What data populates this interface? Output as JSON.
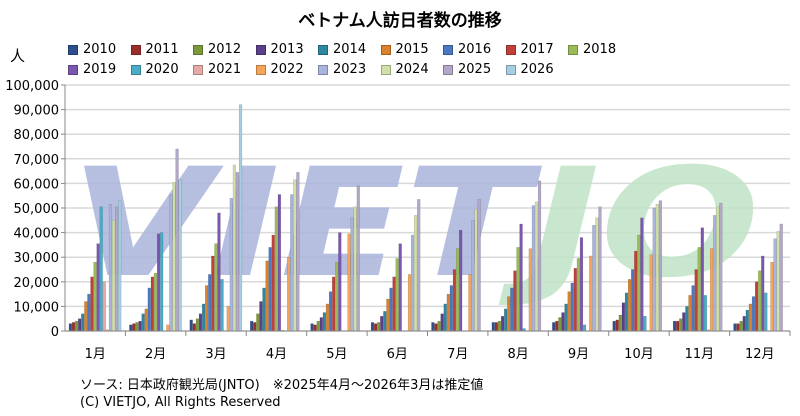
{
  "chart_data": {
    "type": "bar",
    "title": "ベトナム人訪日者数の推移",
    "ylabel": "人",
    "xlabel": "",
    "ylim": [
      0,
      100000
    ],
    "yticks": [
      "0",
      "10,000",
      "20,000",
      "30,000",
      "40,000",
      "50,000",
      "60,000",
      "70,000",
      "80,000",
      "90,000",
      "100,000"
    ],
    "grid": true,
    "legend_position": "top",
    "categories": [
      "1月",
      "2月",
      "3月",
      "4月",
      "5月",
      "6月",
      "7月",
      "8月",
      "9月",
      "10月",
      "11月",
      "12月"
    ],
    "series": [
      {
        "name": "2010",
        "color": "#2e4f8c",
        "values": [
          3000,
          2500,
          4500,
          4000,
          3000,
          3500,
          3500,
          3500,
          3500,
          4000,
          4000,
          3000
        ]
      },
      {
        "name": "2011",
        "color": "#9b2d2a",
        "values": [
          3500,
          3000,
          3000,
          3500,
          2500,
          3000,
          3000,
          3500,
          4000,
          4500,
          4000,
          3000
        ]
      },
      {
        "name": "2012",
        "color": "#7a9a3a",
        "values": [
          4000,
          3500,
          5000,
          7000,
          4000,
          3500,
          4000,
          4000,
          5500,
          6500,
          5000,
          4000
        ]
      },
      {
        "name": "2013",
        "color": "#5b3f8a",
        "values": [
          5000,
          4000,
          7000,
          12000,
          5500,
          6000,
          7000,
          6000,
          7500,
          11500,
          7500,
          6000
        ]
      },
      {
        "name": "2014",
        "color": "#2f86a0",
        "values": [
          7000,
          7000,
          11000,
          17500,
          7500,
          8000,
          11000,
          9000,
          11000,
          15500,
          10000,
          8500
        ]
      },
      {
        "name": "2015",
        "color": "#d9822b",
        "values": [
          12000,
          9000,
          18500,
          28500,
          11000,
          13000,
          15000,
          14000,
          16000,
          21000,
          14500,
          11000
        ]
      },
      {
        "name": "2016",
        "color": "#4a78c2",
        "values": [
          15000,
          17500,
          23000,
          34000,
          16000,
          17500,
          18500,
          17500,
          19500,
          25000,
          18500,
          14000
        ]
      },
      {
        "name": "2017",
        "color": "#c0413a",
        "values": [
          22000,
          22000,
          30500,
          39000,
          22000,
          22000,
          25000,
          24500,
          25500,
          32500,
          25000,
          20000
        ]
      },
      {
        "name": "2018",
        "color": "#9bbb59",
        "values": [
          28000,
          23500,
          35500,
          50500,
          28000,
          29500,
          33500,
          34000,
          29500,
          39000,
          34000,
          24500
        ]
      },
      {
        "name": "2019",
        "color": "#7b57b0",
        "values": [
          35500,
          39500,
          48000,
          55500,
          40000,
          35500,
          41000,
          43500,
          38000,
          46000,
          42000,
          30500
        ]
      },
      {
        "name": "2020",
        "color": "#4bacc6",
        "values": [
          50500,
          40000,
          21000,
          300,
          0,
          0,
          0,
          1000,
          2500,
          6000,
          14500,
          15500
        ]
      },
      {
        "name": "2021",
        "color": "#e6a9a6",
        "values": [
          20000,
          0,
          0,
          0,
          0,
          0,
          0,
          0,
          0,
          0,
          500,
          0
        ]
      },
      {
        "name": "2022",
        "color": "#f4a55a",
        "values": [
          500,
          2500,
          10000,
          30000,
          39500,
          23000,
          23000,
          33500,
          30500,
          31000,
          33500,
          28000
        ]
      },
      {
        "name": "2023",
        "color": "#a9b4de",
        "values": [
          51500,
          55500,
          54000,
          55500,
          46000,
          39000,
          45000,
          51000,
          43000,
          50000,
          47000,
          37500
        ]
      },
      {
        "name": "2024",
        "color": "#cfe0a8",
        "values": [
          45000,
          60500,
          67500,
          61500,
          50500,
          47000,
          49500,
          52500,
          46000,
          51500,
          50500,
          40500
        ]
      },
      {
        "name": "2025",
        "color": "#b3a7c9",
        "values": [
          50500,
          74000,
          64500,
          64500,
          59000,
          53500,
          53500,
          61000,
          50500,
          53000,
          52000,
          43500
        ]
      },
      {
        "name": "2026",
        "color": "#a7cde0",
        "values": [
          53000,
          61500,
          92000,
          null,
          null,
          null,
          null,
          null,
          null,
          null,
          null,
          null
        ]
      }
    ]
  },
  "watermark": "VIETJO",
  "footer": {
    "source": "ソース: 日本政府観光局(JNTO)　※2025年4月〜2026年3月は推定値",
    "copyright": "(C) VIETJO, All Rights Reserved"
  }
}
